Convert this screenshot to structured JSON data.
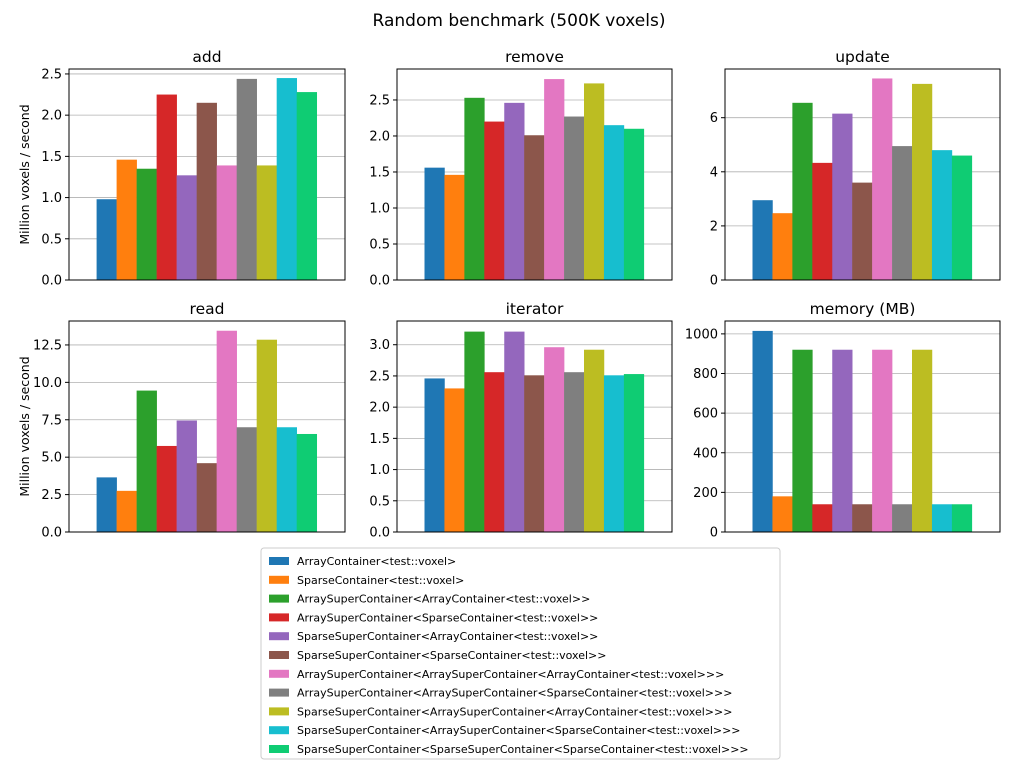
{
  "figure": {
    "suptitle": "Random benchmark (500K voxels)",
    "ylabel": "Million voxels / second"
  },
  "series": [
    {
      "name": "ArrayContainer<test::voxel>",
      "color": "#1f77b4"
    },
    {
      "name": "SparseContainer<test::voxel>",
      "color": "#ff7f0e"
    },
    {
      "name": "ArraySuperContainer<ArrayContainer<test::voxel>>",
      "color": "#2ca02c"
    },
    {
      "name": "ArraySuperContainer<SparseContainer<test::voxel>>",
      "color": "#d62728"
    },
    {
      "name": "SparseSuperContainer<ArrayContainer<test::voxel>>",
      "color": "#9467bd"
    },
    {
      "name": "SparseSuperContainer<SparseContainer<test::voxel>>",
      "color": "#8c564b"
    },
    {
      "name": "ArraySuperContainer<ArraySuperContainer<ArrayContainer<test::voxel>>>",
      "color": "#e377c2"
    },
    {
      "name": "ArraySuperContainer<ArraySuperContainer<SparseContainer<test::voxel>>>",
      "color": "#7f7f7f"
    },
    {
      "name": "SparseSuperContainer<ArraySuperContainer<ArrayContainer<test::voxel>>>",
      "color": "#bcbd22"
    },
    {
      "name": "SparseSuperContainer<ArraySuperContainer<SparseContainer<test::voxel>>>",
      "color": "#17becf"
    },
    {
      "name": "SparseSuperContainer<SparseSuperContainer<SparseContainer<test::voxel>>>",
      "color": "#0fcc73"
    }
  ],
  "chart_data": [
    {
      "type": "bar",
      "title": "add",
      "ylabel": "Million voxels / second",
      "ylim": [
        0,
        2.56
      ],
      "yticks": [
        0.0,
        0.5,
        1.0,
        1.5,
        2.0,
        2.5
      ],
      "tick_format": "1dp",
      "grid": "y",
      "values": [
        0.98,
        1.46,
        1.35,
        2.25,
        1.27,
        2.15,
        1.39,
        2.44,
        1.39,
        2.45,
        2.28
      ]
    },
    {
      "type": "bar",
      "title": "remove",
      "ylabel": "",
      "ylim": [
        0,
        2.93
      ],
      "yticks": [
        0.0,
        0.5,
        1.0,
        1.5,
        2.0,
        2.5
      ],
      "tick_format": "1dp",
      "grid": "y",
      "values": [
        1.56,
        1.46,
        2.53,
        2.2,
        2.46,
        2.01,
        2.79,
        2.27,
        2.73,
        2.15,
        2.1
      ]
    },
    {
      "type": "bar",
      "title": "update",
      "ylabel": "",
      "ylim": [
        0,
        7.8
      ],
      "yticks": [
        0,
        2,
        4,
        6
      ],
      "tick_format": "int",
      "grid": "y",
      "values": [
        2.95,
        2.47,
        6.55,
        4.33,
        6.15,
        3.6,
        7.45,
        4.95,
        7.25,
        4.8,
        4.6
      ]
    },
    {
      "type": "bar",
      "title": "read",
      "ylabel": "Million voxels / second",
      "ylim": [
        0,
        14.1
      ],
      "yticks": [
        0.0,
        2.5,
        5.0,
        7.5,
        10.0,
        12.5
      ],
      "tick_format": "1dp",
      "grid": "y",
      "values": [
        3.65,
        2.75,
        9.45,
        5.75,
        7.45,
        4.6,
        13.45,
        7.0,
        12.85,
        7.0,
        6.55
      ]
    },
    {
      "type": "bar",
      "title": "iterator",
      "ylabel": "",
      "ylim": [
        0,
        3.38
      ],
      "yticks": [
        0.0,
        0.5,
        1.0,
        1.5,
        2.0,
        2.5,
        3.0
      ],
      "tick_format": "1dp",
      "grid": "y",
      "values": [
        2.46,
        2.3,
        3.21,
        2.56,
        3.21,
        2.51,
        2.96,
        2.56,
        2.92,
        2.51,
        2.53
      ]
    },
    {
      "type": "bar",
      "title": "memory (MB)",
      "ylabel": "",
      "ylim": [
        0,
        1065
      ],
      "yticks": [
        0,
        200,
        400,
        600,
        800,
        1000
      ],
      "tick_format": "int",
      "grid": "y",
      "values": [
        1015,
        180,
        920,
        140,
        920,
        140,
        920,
        140,
        920,
        140,
        140
      ]
    }
  ]
}
